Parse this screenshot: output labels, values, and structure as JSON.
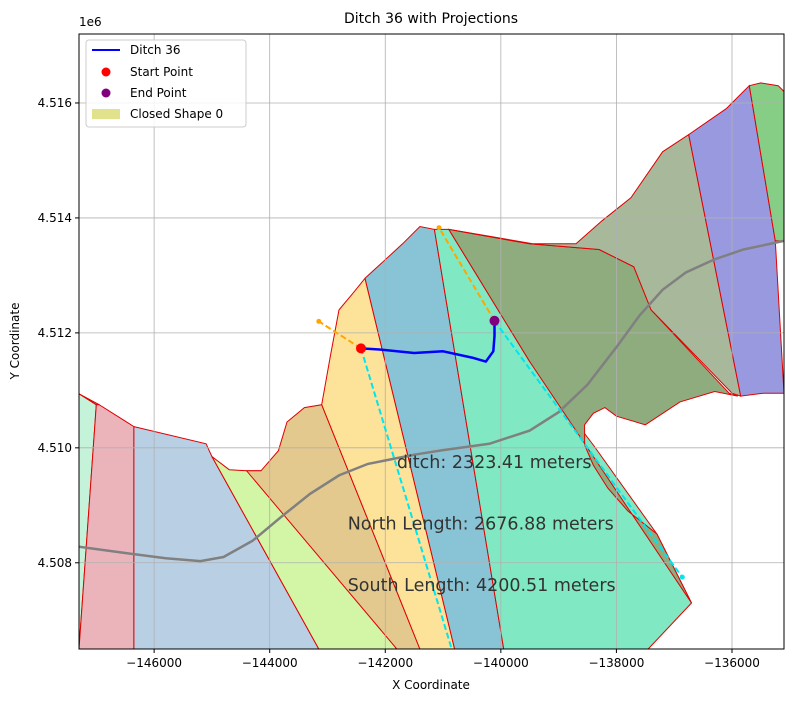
{
  "chart_data": {
    "type": "line",
    "title": "Ditch 36 with Projections",
    "xlabel": "X Coordinate",
    "ylabel": "Y Coordinate",
    "offset_label": "1e6",
    "xlim": [
      -147300,
      -135100
    ],
    "ylim": [
      4506.5,
      4517.2
    ],
    "x_ticks": [
      -146000,
      -144000,
      -142000,
      -140000,
      -138000,
      -136000
    ],
    "x_tick_labels": [
      "−146000",
      "−144000",
      "−142000",
      "−140000",
      "−138000",
      "−136000"
    ],
    "y_ticks": [
      4508,
      4510,
      4512,
      4514,
      4516
    ],
    "y_tick_labels": [
      "4.508",
      "4.510",
      "4.512",
      "4.514",
      "4.516"
    ],
    "grid": true,
    "legend_position": "top-left",
    "legend": [
      {
        "label": "Ditch 36",
        "kind": "line",
        "color": "#0000ff"
      },
      {
        "label": "Start Point",
        "kind": "dot",
        "color": "#ff0000"
      },
      {
        "label": "End Point",
        "kind": "dot",
        "color": "#800080"
      },
      {
        "label": "Closed Shape 0",
        "kind": "patch",
        "color": "#dfdf80"
      }
    ],
    "ditch": {
      "color": "#0000ff",
      "points": [
        [
          -142420,
          4511.73
        ],
        [
          -142100,
          4511.71
        ],
        [
          -141500,
          4511.65
        ],
        [
          -141000,
          4511.68
        ],
        [
          -140500,
          4511.57
        ],
        [
          -140260,
          4511.5
        ],
        [
          -140130,
          4511.68
        ],
        [
          -140110,
          4511.95
        ],
        [
          -140110,
          4512.21
        ]
      ]
    },
    "start_point": {
      "x": -142420,
      "y": 4511.73,
      "color": "#ff0000"
    },
    "end_point": {
      "x": -140110,
      "y": 4512.21,
      "color": "#800080"
    },
    "projections": [
      {
        "name": "north",
        "color": "#ffa500",
        "points": [
          [
            -142420,
            4511.73
          ],
          [
            -143150,
            4512.2
          ]
        ]
      },
      {
        "name": "north",
        "color": "#ffa500",
        "points": [
          [
            -140110,
            4512.21
          ],
          [
            -141070,
            4513.83
          ]
        ]
      },
      {
        "name": "south",
        "color": "#00e5ee",
        "points": [
          [
            -142420,
            4511.73
          ],
          [
            -140850,
            4506.5
          ]
        ]
      },
      {
        "name": "south",
        "color": "#00e5ee",
        "points": [
          [
            -140110,
            4512.21
          ],
          [
            -136860,
            4507.75
          ]
        ]
      }
    ],
    "projection_end_points": [
      {
        "x": -143150,
        "y": 4512.2,
        "color": "#ffa500"
      },
      {
        "x": -141070,
        "y": 4513.83,
        "color": "#ffa500"
      },
      {
        "x": -136860,
        "y": 4507.75,
        "color": "#00e5ee"
      }
    ],
    "gray_curve": {
      "color": "#808080",
      "points": [
        [
          -147300,
          4508.28
        ],
        [
          -146500,
          4508.17
        ],
        [
          -145800,
          4508.08
        ],
        [
          -145200,
          4508.03
        ],
        [
          -144800,
          4508.1
        ],
        [
          -144300,
          4508.38
        ],
        [
          -143800,
          4508.8
        ],
        [
          -143300,
          4509.2
        ],
        [
          -142800,
          4509.52
        ],
        [
          -142300,
          4509.72
        ],
        [
          -141500,
          4509.88
        ],
        [
          -141000,
          4509.96
        ],
        [
          -140200,
          4510.07
        ],
        [
          -139500,
          4510.3
        ],
        [
          -139000,
          4510.62
        ],
        [
          -138500,
          4511.1
        ],
        [
          -138000,
          4511.75
        ],
        [
          -137600,
          4512.3
        ],
        [
          -137200,
          4512.75
        ],
        [
          -136800,
          4513.05
        ],
        [
          -136300,
          4513.28
        ],
        [
          -135800,
          4513.45
        ],
        [
          -135100,
          4513.6
        ]
      ]
    },
    "polygons": [
      {
        "color": "#c5f3d9",
        "points": [
          [
            -147300,
            4510.94
          ],
          [
            -147000,
            4510.75
          ],
          [
            -147300,
            4506.5
          ]
        ]
      },
      {
        "color": "#7fb6e6",
        "points": [
          [
            -147300,
            4510.94
          ],
          [
            -146950,
            4510.75
          ],
          [
            -147000,
            4510.75
          ],
          [
            -147300,
            4510.94
          ]
        ]
      },
      {
        "color": "#ebb4bb",
        "points": [
          [
            -147000,
            4510.75
          ],
          [
            -146950,
            4510.75
          ],
          [
            -146350,
            4510.37
          ],
          [
            -146350,
            4506.5
          ],
          [
            -147300,
            4506.5
          ]
        ]
      },
      {
        "color": "#b9d0e4",
        "points": [
          [
            -146350,
            4510.37
          ],
          [
            -145100,
            4510.07
          ],
          [
            -145000,
            4509.85
          ],
          [
            -143150,
            4506.5
          ],
          [
            -146350,
            4506.5
          ]
        ]
      },
      {
        "color": "#d3f5a6",
        "points": [
          [
            -145000,
            4509.85
          ],
          [
            -144700,
            4509.62
          ],
          [
            -144400,
            4509.6
          ],
          [
            -144150,
            4509.6
          ],
          [
            -141800,
            4506.5
          ],
          [
            -143150,
            4506.5
          ]
        ]
      },
      {
        "color": "#e4c98e",
        "points": [
          [
            -144400,
            4509.6
          ],
          [
            -144150,
            4509.6
          ],
          [
            -143850,
            4509.95
          ],
          [
            -143700,
            4510.45
          ],
          [
            -143400,
            4510.7
          ],
          [
            -143100,
            4510.75
          ],
          [
            -141400,
            4506.5
          ],
          [
            -141800,
            4506.5
          ]
        ]
      },
      {
        "color": "#fde29a",
        "points": [
          [
            -143100,
            4510.75
          ],
          [
            -142950,
            4511.6
          ],
          [
            -142800,
            4512.4
          ],
          [
            -142550,
            4512.7
          ],
          [
            -142350,
            4512.95
          ],
          [
            -140800,
            4506.5
          ],
          [
            -141400,
            4506.5
          ]
        ]
      },
      {
        "color": "#89c4d6",
        "points": [
          [
            -142350,
            4512.95
          ],
          [
            -141700,
            4513.55
          ],
          [
            -141400,
            4513.85
          ],
          [
            -141150,
            4513.8
          ],
          [
            -139950,
            4506.5
          ],
          [
            -140800,
            4506.5
          ]
        ]
      },
      {
        "color": "#80e9c4",
        "points": [
          [
            -141150,
            4513.8
          ],
          [
            -140900,
            4513.8
          ],
          [
            -139500,
            4511.5
          ],
          [
            -138400,
            4510.05
          ],
          [
            -137300,
            4508.5
          ],
          [
            -136700,
            4507.3
          ],
          [
            -137450,
            4506.5
          ],
          [
            -139950,
            4506.5
          ]
        ]
      },
      {
        "color": "#8fac7f",
        "points": [
          [
            -140900,
            4513.8
          ],
          [
            -139500,
            4513.55
          ],
          [
            -138300,
            4513.45
          ],
          [
            -137700,
            4513.15
          ],
          [
            -137400,
            4512.4
          ],
          [
            -136050,
            4510.95
          ],
          [
            -135900,
            4510.9
          ],
          [
            -136300,
            4510.98
          ],
          [
            -136900,
            4510.8
          ],
          [
            -137500,
            4510.4
          ],
          [
            -138000,
            4510.55
          ],
          [
            -138200,
            4510.7
          ],
          [
            -138400,
            4510.6
          ],
          [
            -138550,
            4510.4
          ],
          [
            -138550,
            4510.05
          ],
          [
            -138400,
            4509.7
          ],
          [
            -138150,
            4509.3
          ],
          [
            -137800,
            4508.9
          ],
          [
            -137300,
            4508.5
          ],
          [
            -136700,
            4507.3
          ],
          [
            -139500,
            4511.5
          ]
        ]
      },
      {
        "color": "#a8b89a",
        "points": [
          [
            -140900,
            4513.8
          ],
          [
            -140300,
            4513.7
          ],
          [
            -139450,
            4513.55
          ],
          [
            -138700,
            4513.55
          ],
          [
            -138250,
            4513.95
          ],
          [
            -137750,
            4514.35
          ],
          [
            -137200,
            4515.15
          ],
          [
            -136750,
            4515.45
          ],
          [
            -135850,
            4510.9
          ],
          [
            -136000,
            4510.95
          ],
          [
            -137400,
            4512.4
          ],
          [
            -137700,
            4513.15
          ],
          [
            -138300,
            4513.45
          ],
          [
            -139500,
            4513.55
          ]
        ]
      },
      {
        "color": "#9999e0",
        "points": [
          [
            -136750,
            4515.45
          ],
          [
            -136100,
            4515.9
          ],
          [
            -135700,
            4516.3
          ],
          [
            -135250,
            4513.6
          ],
          [
            -135100,
            4510.95
          ],
          [
            -135450,
            4510.95
          ],
          [
            -135850,
            4510.9
          ]
        ]
      },
      {
        "color": "#86cd86",
        "points": [
          [
            -135700,
            4516.3
          ],
          [
            -135500,
            4516.35
          ],
          [
            -135200,
            4516.3
          ],
          [
            -135100,
            4516.2
          ],
          [
            -135100,
            4513.6
          ],
          [
            -135250,
            4513.6
          ]
        ]
      }
    ],
    "annotations": [
      {
        "text": "ditch: 2323.41 meters",
        "x": -141800,
        "y": 4509.65
      },
      {
        "text": "North Length: 2676.88 meters",
        "x": -142650,
        "y": 4508.58
      },
      {
        "text": "South Length: 4200.51 meters",
        "x": -142650,
        "y": 4507.51
      }
    ]
  }
}
